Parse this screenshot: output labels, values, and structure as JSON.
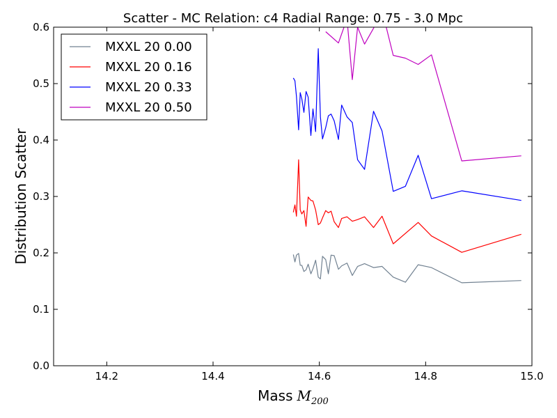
{
  "chart_data": {
    "type": "line",
    "title": "Scatter - MC Relation: c4 Radial Range: 0.75 - 3.0 Mpc",
    "xlabel": "Mass",
    "xlabel_math": "M",
    "xlabel_sub": "200",
    "ylabel": "Distribution Scatter",
    "xlim": [
      14.1,
      15.0
    ],
    "ylim": [
      0.0,
      0.6
    ],
    "xticks": [
      14.2,
      14.4,
      14.6,
      14.8,
      15.0
    ],
    "xtick_labels": [
      "14.2",
      "14.4",
      "14.6",
      "14.8",
      "15.0"
    ],
    "yticks": [
      0.0,
      0.1,
      0.2,
      0.3,
      0.4,
      0.5,
      0.6
    ],
    "ytick_labels": [
      "0.0",
      "0.1",
      "0.2",
      "0.3",
      "0.4",
      "0.5",
      "0.6"
    ],
    "grid": false,
    "legend_position": "top-left",
    "series": [
      {
        "name": "MXXL 20 0.00",
        "color": "#708090",
        "x": [
          14.551,
          14.554,
          14.557,
          14.561,
          14.564,
          14.567,
          14.571,
          14.575,
          14.579,
          14.584,
          14.588,
          14.593,
          14.598,
          14.602,
          14.606,
          14.612,
          14.617,
          14.622,
          14.628,
          14.636,
          14.642,
          14.652,
          14.662,
          14.672,
          14.685,
          14.702,
          14.718,
          14.739,
          14.762,
          14.786,
          14.811,
          14.868,
          14.98
        ],
        "y": [
          0.197,
          0.184,
          0.196,
          0.199,
          0.178,
          0.178,
          0.167,
          0.17,
          0.18,
          0.163,
          0.172,
          0.187,
          0.157,
          0.154,
          0.194,
          0.188,
          0.163,
          0.196,
          0.195,
          0.171,
          0.177,
          0.182,
          0.16,
          0.176,
          0.181,
          0.174,
          0.176,
          0.157,
          0.148,
          0.179,
          0.174,
          0.147,
          0.151
        ]
      },
      {
        "name": "MXXL 20 0.16",
        "color": "#ff0000",
        "x": [
          14.551,
          14.554,
          14.557,
          14.561,
          14.564,
          14.567,
          14.571,
          14.575,
          14.579,
          14.584,
          14.588,
          14.593,
          14.598,
          14.602,
          14.606,
          14.612,
          14.617,
          14.622,
          14.628,
          14.636,
          14.642,
          14.652,
          14.662,
          14.672,
          14.685,
          14.702,
          14.718,
          14.739,
          14.786,
          14.811,
          14.868,
          14.98
        ],
        "y": [
          0.272,
          0.285,
          0.265,
          0.365,
          0.276,
          0.269,
          0.275,
          0.247,
          0.299,
          0.293,
          0.292,
          0.276,
          0.25,
          0.253,
          0.262,
          0.275,
          0.271,
          0.274,
          0.255,
          0.245,
          0.261,
          0.264,
          0.256,
          0.259,
          0.264,
          0.245,
          0.265,
          0.216,
          0.254,
          0.23,
          0.201,
          0.233
        ]
      },
      {
        "name": "MXXL 20 0.33",
        "color": "#0000ff",
        "x": [
          14.551,
          14.554,
          14.557,
          14.561,
          14.564,
          14.567,
          14.571,
          14.575,
          14.579,
          14.584,
          14.588,
          14.593,
          14.598,
          14.602,
          14.606,
          14.612,
          14.617,
          14.622,
          14.628,
          14.636,
          14.642,
          14.652,
          14.662,
          14.672,
          14.685,
          14.702,
          14.718,
          14.739,
          14.762,
          14.786,
          14.811,
          14.868,
          14.98
        ],
        "y": [
          0.51,
          0.505,
          0.477,
          0.418,
          0.484,
          0.473,
          0.449,
          0.486,
          0.476,
          0.408,
          0.455,
          0.415,
          0.562,
          0.441,
          0.402,
          0.422,
          0.443,
          0.446,
          0.434,
          0.401,
          0.462,
          0.441,
          0.431,
          0.365,
          0.348,
          0.451,
          0.416,
          0.309,
          0.318,
          0.373,
          0.296,
          0.31,
          0.293
        ]
      },
      {
        "name": "MXXL 20 0.50",
        "color": "#bf00bf",
        "x": [
          14.612,
          14.636,
          14.652,
          14.662,
          14.672,
          14.685,
          14.702,
          14.718,
          14.739,
          14.762,
          14.786,
          14.811,
          14.868,
          14.98
        ],
        "y": [
          0.592,
          0.572,
          0.615,
          0.507,
          0.6,
          0.57,
          0.598,
          0.63,
          0.55,
          0.545,
          0.534,
          0.551,
          0.363,
          0.372
        ]
      }
    ]
  }
}
